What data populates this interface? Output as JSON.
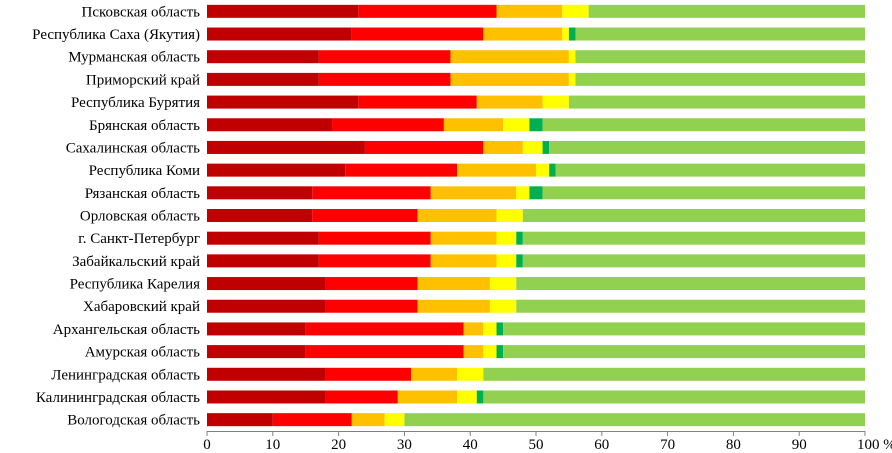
{
  "chart_data": {
    "type": "bar",
    "orientation": "horizontal",
    "stacked": true,
    "xlim": [
      0,
      100
    ],
    "x_ticks": [
      "0",
      "10",
      "20",
      "30",
      "40",
      "50",
      "60",
      "70",
      "80",
      "90",
      "100 %"
    ],
    "grid": false,
    "legend": "none",
    "categories": [
      "Псковская область",
      "Республика Саха (Якутия)",
      "Мурманская область",
      "Приморский край",
      "Республика Бурятия",
      "Брянская область",
      "Сахалинская область",
      "Республика Коми",
      "Рязанская область",
      "Орловская область",
      "г. Санкт-Петербург",
      "Забайкальский край",
      "Республика Карелия",
      "Хабаровский край",
      "Архангельская область",
      "Амурская область",
      "Ленинградская область",
      "Калининградская область",
      "Вологодская область"
    ],
    "colors": [
      "#c00000",
      "#ff0000",
      "#ffc000",
      "#ffff00",
      "#00b050",
      "#92d050"
    ],
    "series": [
      {
        "values": [
          23,
          22,
          17,
          17,
          23,
          19,
          24,
          21,
          16,
          16,
          17,
          17,
          18,
          18,
          15,
          15,
          18,
          18,
          10
        ]
      },
      {
        "values": [
          21,
          20,
          20,
          20,
          18,
          17,
          18,
          17,
          18,
          16,
          17,
          17,
          14,
          14,
          24,
          24,
          13,
          11,
          12
        ]
      },
      {
        "values": [
          10,
          12,
          18,
          18,
          10,
          9,
          6,
          12,
          13,
          12,
          10,
          10,
          11,
          11,
          3,
          3,
          7,
          9,
          5
        ]
      },
      {
        "values": [
          4,
          1,
          1,
          1,
          4,
          4,
          3,
          2,
          2,
          4,
          3,
          3,
          4,
          4,
          2,
          2,
          4,
          3,
          3
        ]
      },
      {
        "values": [
          0,
          1,
          0,
          0,
          0,
          2,
          1,
          1,
          2,
          0,
          1,
          1,
          0,
          0,
          1,
          1,
          0,
          1,
          0
        ]
      },
      {
        "values": [
          42,
          44,
          44,
          44,
          45,
          49,
          48,
          47,
          49,
          52,
          52,
          52,
          53,
          53,
          55,
          55,
          58,
          58,
          70
        ]
      }
    ]
  }
}
